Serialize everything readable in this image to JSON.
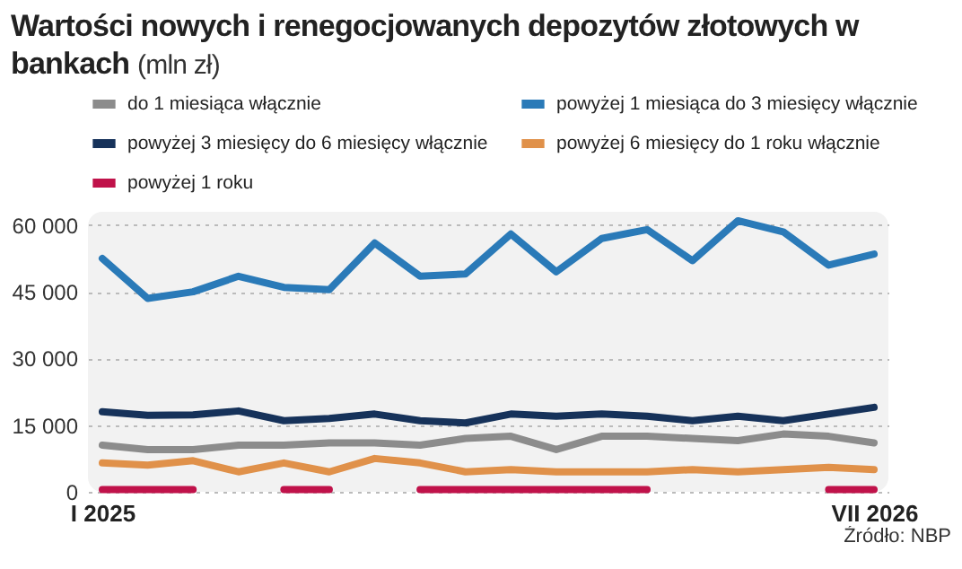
{
  "chart_data": {
    "type": "line",
    "title": "Wartości nowych i renegocjowanych depozytów złotowych w bankach",
    "subtitle": "(mln zł)",
    "categories": [
      "I 2025",
      null,
      null,
      null,
      null,
      null,
      null,
      null,
      null,
      null,
      null,
      null,
      null,
      null,
      null,
      null,
      null,
      "VII 2026"
    ],
    "series": [
      {
        "name": "do 1 miesiąca włącznie",
        "color": "#8c8c8c",
        "values": [
          10500,
          9500,
          9500,
          10500,
          10500,
          11000,
          11000,
          10500,
          12000,
          12500,
          9500,
          12500,
          12500,
          12000,
          11500,
          13000,
          12500,
          11000
        ]
      },
      {
        "name": "powyżej 1 miesiąca do 3 miesięcy włącznie",
        "color": "#2a7ab8",
        "values": [
          52500,
          43500,
          45000,
          48500,
          46000,
          45500,
          56000,
          48500,
          49000,
          58000,
          49500,
          57000,
          59000,
          52000,
          61000,
          58500,
          51000,
          53500
        ]
      },
      {
        "name": "powyżej 3 miesięcy do 6 miesięcy włącznie",
        "color": "#16325a",
        "values": [
          18000,
          17200,
          17300,
          18200,
          16000,
          16500,
          17500,
          16000,
          15500,
          17500,
          17000,
          17500,
          17000,
          16000,
          17000,
          16000,
          17500,
          19000
        ]
      },
      {
        "name": "powyżej 6 miesięcy do 1 roku włącznie",
        "color": "#e0914a",
        "values": [
          6500,
          6000,
          7000,
          4500,
          6500,
          4500,
          7500,
          6500,
          4500,
          5000,
          4500,
          4500,
          4500,
          5000,
          4500,
          5000,
          5500,
          5000
        ]
      },
      {
        "name": "powyżej 1 roku",
        "color": "#c0124a",
        "values": [
          500,
          500,
          500,
          null,
          500,
          500,
          null,
          500,
          500,
          500,
          500,
          500,
          500,
          null,
          null,
          null,
          500,
          500
        ]
      }
    ],
    "ylim": [
      0,
      63000
    ],
    "yticks": [
      {
        "value": 0,
        "label": "0"
      },
      {
        "value": 15000,
        "label": "15 000"
      },
      {
        "value": 30000,
        "label": "30 000"
      },
      {
        "value": 45000,
        "label": "45 000"
      },
      {
        "value": 60000,
        "label": "60 000"
      }
    ],
    "grid": "y",
    "legend": "top",
    "annotations": [
      "Źródło: NBP"
    ]
  }
}
